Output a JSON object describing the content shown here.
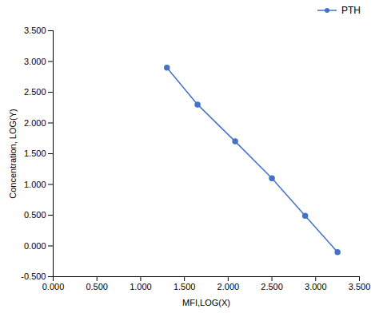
{
  "chart_data": {
    "type": "line",
    "x": [
      1.3,
      1.65,
      2.08,
      2.5,
      2.88,
      3.25
    ],
    "series": [
      {
        "name": "PTH",
        "color": "#4472C4",
        "marker": "circle",
        "values": [
          2.9,
          2.3,
          1.7,
          1.1,
          0.49,
          -0.1
        ]
      }
    ],
    "xlabel": "MFI,LOG(X)",
    "ylabel": "Concentration, LOG(Y)",
    "xlim": [
      0.0,
      3.5
    ],
    "ylim": [
      -0.5,
      3.5
    ],
    "xticks": [
      {
        "value": 0.0,
        "label": "0.000"
      },
      {
        "value": 0.5,
        "label": "0.500"
      },
      {
        "value": 1.0,
        "label": "1.000"
      },
      {
        "value": 1.5,
        "label": "1.500"
      },
      {
        "value": 2.0,
        "label": "2.000"
      },
      {
        "value": 2.5,
        "label": "2.500"
      },
      {
        "value": 3.0,
        "label": "3.000"
      },
      {
        "value": 3.5,
        "label": "3.500"
      }
    ],
    "yticks": [
      {
        "value": -0.5,
        "label": "-0.500"
      },
      {
        "value": 0.0,
        "label": "0.000"
      },
      {
        "value": 0.5,
        "label": "0.500"
      },
      {
        "value": 1.0,
        "label": "1.000"
      },
      {
        "value": 1.5,
        "label": "1.500"
      },
      {
        "value": 2.0,
        "label": "2.000"
      },
      {
        "value": 2.5,
        "label": "2.500"
      },
      {
        "value": 3.0,
        "label": "3.000"
      },
      {
        "value": 3.5,
        "label": "3.500"
      }
    ],
    "legend": "upper right",
    "grid": false
  }
}
